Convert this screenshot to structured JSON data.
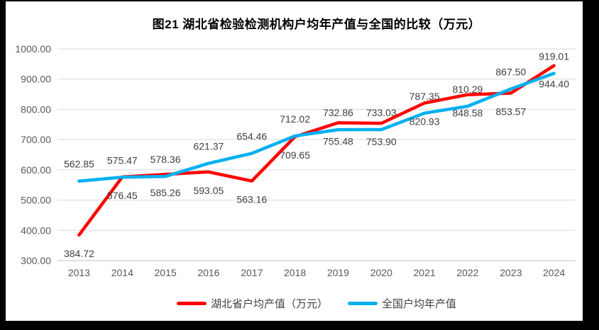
{
  "title": "图21 湖北省检验检测机构户均年产值与全国的比较（万元）",
  "chart_data": {
    "type": "line",
    "categories": [
      "2013",
      "2014",
      "2015",
      "2016",
      "2017",
      "2018",
      "2019",
      "2020",
      "2021",
      "2022",
      "2023",
      "2024"
    ],
    "series": [
      {
        "name": "湖北省户均产值（万元）",
        "color": "#FF0000",
        "label_position": "below",
        "values": [
          384.72,
          576.45,
          585.26,
          593.05,
          563.16,
          709.65,
          755.48,
          753.9,
          820.93,
          848.58,
          853.57,
          944.4
        ]
      },
      {
        "name": "全国户均年产值",
        "color": "#00B0F0",
        "label_position": "above",
        "values": [
          562.85,
          575.47,
          578.36,
          621.37,
          654.46,
          712.02,
          732.86,
          733.03,
          787.35,
          810.29,
          867.5,
          919.01
        ]
      }
    ],
    "ylim": [
      300,
      1000
    ],
    "ytick_labels": [
      "300.00",
      "400.00",
      "500.00",
      "600.00",
      "700.00",
      "800.00",
      "900.00",
      "1000.00"
    ],
    "grid": true,
    "data_labels": true,
    "data_label_decimals": 2,
    "legend_position": "bottom",
    "gridline_color": "#D9D9D9",
    "axisline_color": "#BFBFBF"
  }
}
